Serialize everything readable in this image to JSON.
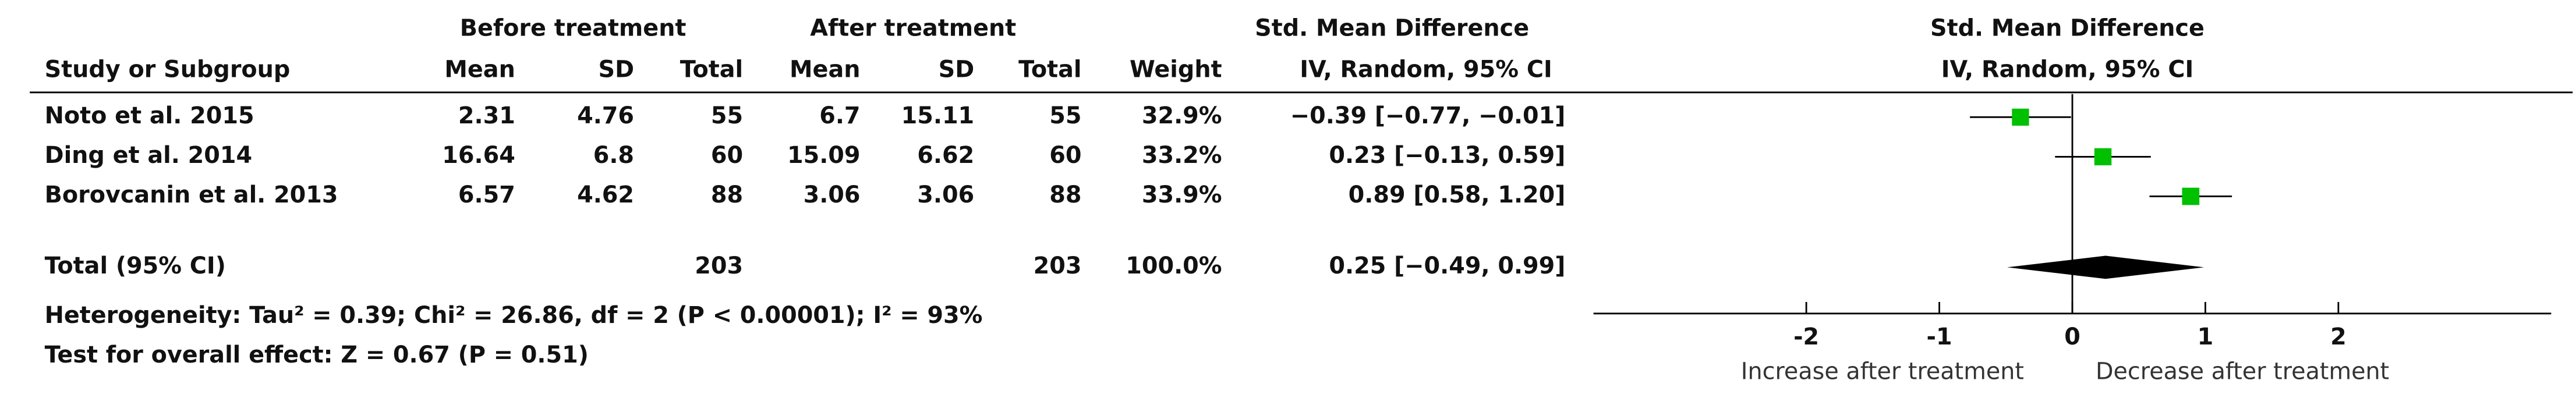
{
  "chart_data": {
    "type": "forest",
    "group_headers": {
      "before": "Before treatment",
      "after": "After treatment",
      "effect_table": "Std. Mean Difference",
      "effect_plot": "Std. Mean Difference"
    },
    "columns": [
      "Study or Subgroup",
      "Mean",
      "SD",
      "Total",
      "Mean",
      "SD",
      "Total",
      "Weight",
      "IV, Random, 95% CI"
    ],
    "plot_subheader": "IV, Random, 95% CI",
    "studies": [
      {
        "name": "Noto et al. 2015",
        "before": {
          "mean": 2.31,
          "sd": 4.76,
          "total": 55
        },
        "after": {
          "mean": 6.7,
          "sd": 15.11,
          "total": 55
        },
        "weight": 32.9,
        "weight_label": "32.9%",
        "ci_label": "−0.39 [−0.77, −0.01]",
        "smd": -0.39,
        "ci_low": -0.77,
        "ci_high": -0.01
      },
      {
        "name": "Ding et al. 2014",
        "before": {
          "mean": 16.64,
          "sd": 6.8,
          "total": 60
        },
        "after": {
          "mean": 15.09,
          "sd": 6.62,
          "total": 60
        },
        "weight": 33.2,
        "weight_label": "33.2%",
        "ci_label": "0.23 [−0.13, 0.59]",
        "smd": 0.23,
        "ci_low": -0.13,
        "ci_high": 0.59
      },
      {
        "name": "Borovcanin et al. 2013",
        "before": {
          "mean": 6.57,
          "sd": 4.62,
          "total": 88
        },
        "after": {
          "mean": 3.06,
          "sd": 3.06,
          "total": 88
        },
        "weight": 33.9,
        "weight_label": "33.9%",
        "ci_label": "0.89 [0.58, 1.20]",
        "smd": 0.89,
        "ci_low": 0.58,
        "ci_high": 1.2
      }
    ],
    "total": {
      "name": "Total (95% CI)",
      "before_total": 203,
      "after_total": 203,
      "weight": 100.0,
      "weight_label": "100.0%",
      "ci_label": "0.25 [−0.49, 0.99]",
      "smd": 0.25,
      "ci_low": -0.49,
      "ci_high": 0.99
    },
    "heterogeneity": "Heterogeneity: Tau² = 0.39; Chi² = 26.86, df = 2 (P < 0.00001); I² = 93%",
    "overall_effect": "Test for overall effect: Z = 0.67 (P = 0.51)",
    "xlim": [
      -3.6,
      3.6
    ],
    "xticks": [
      -2,
      -1,
      0,
      1,
      2
    ],
    "xlabel_left": "Increase after treatment",
    "xlabel_right": "Decrease after treatment",
    "square_color": "#00c000",
    "diamond_color": "#000000"
  }
}
